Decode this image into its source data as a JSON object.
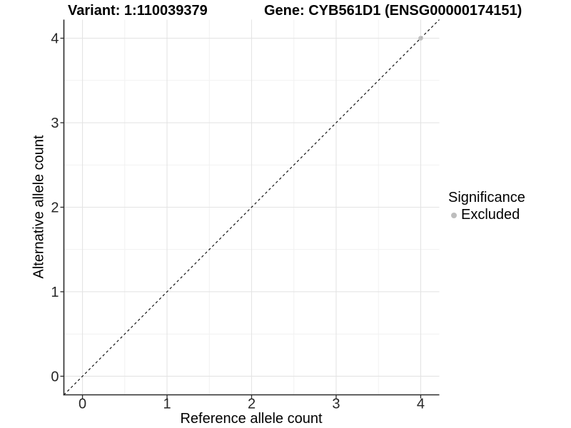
{
  "chart_data": {
    "type": "scatter",
    "title_left": "Variant: 1:110039379",
    "title_right": "Gene: CYB561D1 (ENSG00000174151)",
    "xlabel": "Reference allele count",
    "ylabel": "Alternative allele count",
    "xlim": [
      -0.22,
      4.22
    ],
    "ylim": [
      -0.22,
      4.22
    ],
    "x_ticks": [
      0,
      1,
      2,
      3,
      4
    ],
    "y_ticks": [
      0,
      1,
      2,
      3,
      4
    ],
    "x_minor": [
      0.5,
      1.5,
      2.5,
      3.5
    ],
    "y_minor": [
      0.5,
      1.5,
      2.5,
      3.5
    ],
    "grid": true,
    "points": [
      {
        "x": 4,
        "y": 4,
        "series": "Excluded"
      }
    ],
    "identity_line": {
      "style": "dashed",
      "x0": -0.22,
      "y0": -0.22,
      "x1": 4.22,
      "y1": 4.22
    },
    "legend": {
      "title": "Significance",
      "position": "right",
      "items": [
        {
          "label": "Excluded",
          "color": "#bdbdbd"
        }
      ]
    },
    "colors": {
      "point": "#bdbdbd",
      "grid_major": "#e4e4e4",
      "grid_minor": "#f1f1f1",
      "axis_line": "#2b2b2b",
      "tick_text": "#262626",
      "dashed_line": "#000000"
    }
  }
}
